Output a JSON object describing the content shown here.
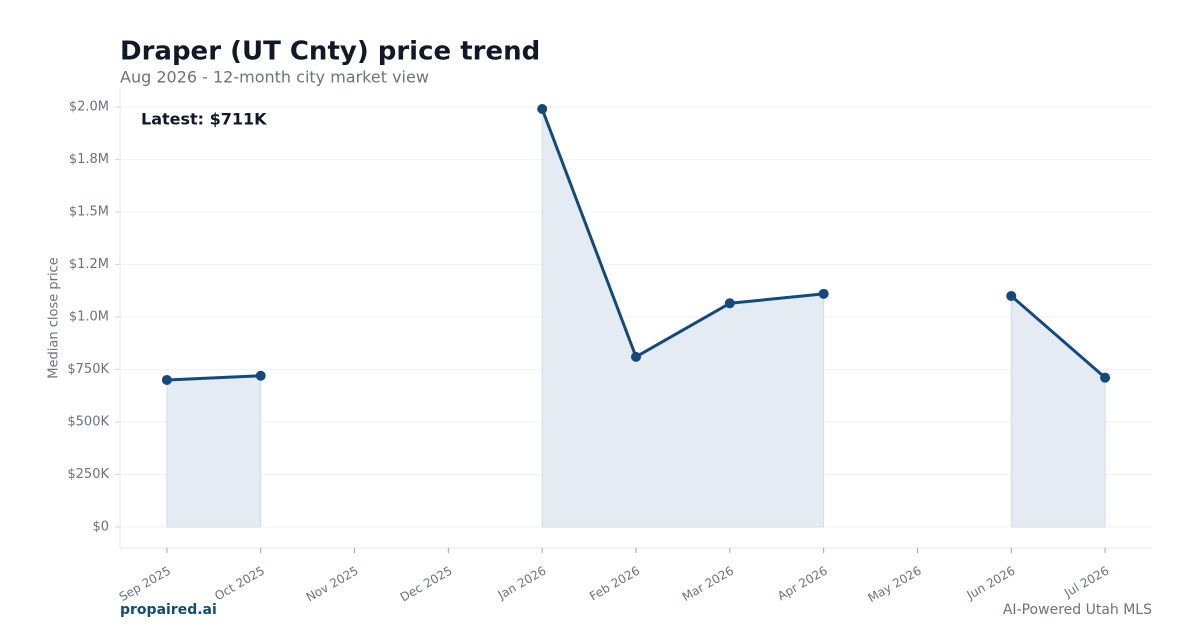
{
  "chart_data": {
    "type": "line",
    "title": "Draper (UT Cnty) price trend",
    "subtitle": "Aug 2026 - 12-month city market view",
    "y_label": "Median close price",
    "annotation": "Latest: $711K",
    "footer_left": "propaired.ai",
    "footer_right": "AI-Powered Utah MLS",
    "categories": [
      "Sep 2025",
      "Oct 2025",
      "Nov 2025",
      "Dec 2025",
      "Jan 2026",
      "Feb 2026",
      "Mar 2026",
      "Apr 2026",
      "May 2026",
      "Jun 2026",
      "Jul 2026"
    ],
    "series": [
      {
        "name": "Median close price",
        "color": "#124a7e",
        "fill": "#e5ebf3",
        "values": [
          700000,
          720000,
          null,
          null,
          1990000,
          810000,
          1065000,
          1110000,
          null,
          1100000,
          711000
        ]
      }
    ],
    "ylim": [
      -100000,
      2090000
    ],
    "yticks": [
      {
        "value": 0,
        "label": "$0"
      },
      {
        "value": 250000,
        "label": "$250K"
      },
      {
        "value": 500000,
        "label": "$500K"
      },
      {
        "value": 750000,
        "label": "$750K"
      },
      {
        "value": 1000000,
        "label": "$1.0M"
      },
      {
        "value": 1250000,
        "label": "$1.2M"
      },
      {
        "value": 1500000,
        "label": "$1.5M"
      },
      {
        "value": 1750000,
        "label": "$1.8M"
      },
      {
        "value": 2000000,
        "label": "$2.0M"
      }
    ],
    "grid": true
  }
}
